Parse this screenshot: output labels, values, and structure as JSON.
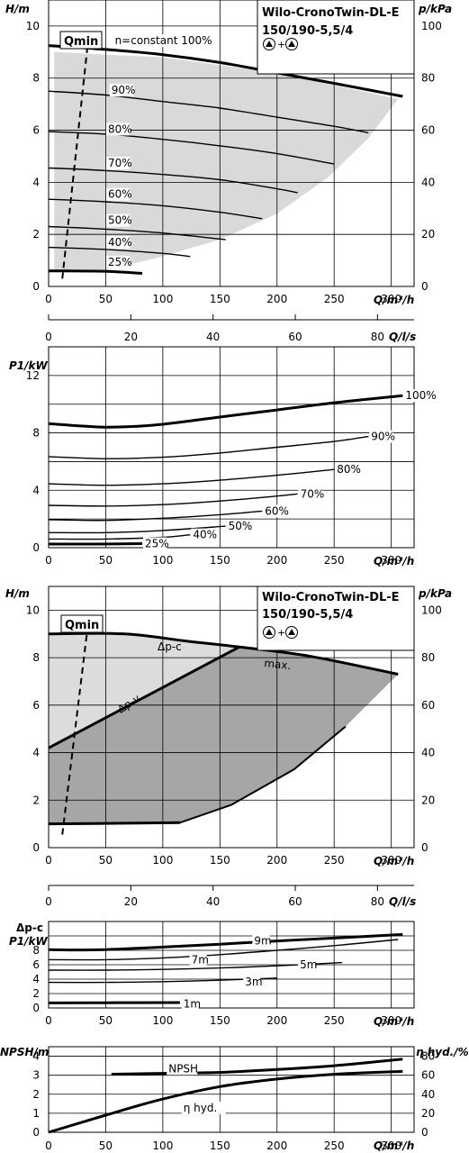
{
  "product": {
    "name": "Wilo-CronoTwin-DL-E",
    "model": "150/190-5,5/4",
    "operation_symbol": "▲ + ▲"
  },
  "chart_data": [
    {
      "id": "h_q_speed",
      "type": "line",
      "title": "Wilo-CronoTwin-DL-E 150/190-5,5/4",
      "xlabel": "Q/m³/h",
      "ylabel": "H/m",
      "y2label": "p/kPa",
      "xlim": [
        0,
        320
      ],
      "ylim": [
        0,
        11
      ],
      "y2lim": [
        0,
        110
      ],
      "x_ticks": [
        0,
        50,
        100,
        150,
        200,
        250,
        300
      ],
      "y_ticks": [
        0,
        2,
        4,
        6,
        8,
        10
      ],
      "y2_ticks": [
        0,
        20,
        40,
        60,
        80,
        100
      ],
      "grid": true,
      "qmin_label": "Qmin",
      "qmin_line": [
        [
          12,
          0.3
        ],
        [
          35,
          9.6
        ]
      ],
      "shaded_region": [
        [
          5,
          9.0
        ],
        [
          100,
          8.8
        ],
        [
          200,
          8.2
        ],
        [
          306,
          7.2
        ],
        [
          280,
          5.7
        ],
        [
          245,
          4.2
        ],
        [
          200,
          2.8
        ],
        [
          150,
          1.8
        ],
        [
          95,
          1.1
        ],
        [
          42,
          0.55
        ],
        [
          5,
          0.6
        ]
      ],
      "series": [
        {
          "name": "n=constant 100%",
          "label_x": 58,
          "label_y": 9.3,
          "bold": true,
          "x": [
            0,
            50,
            100,
            150,
            200,
            250,
            310
          ],
          "y": [
            9.25,
            9.1,
            8.9,
            8.6,
            8.2,
            7.8,
            7.3
          ]
        },
        {
          "name": "90%",
          "label_x": 55,
          "label_y": 7.4,
          "bold": false,
          "x": [
            0,
            50,
            100,
            150,
            200,
            250,
            280
          ],
          "y": [
            7.5,
            7.35,
            7.1,
            6.85,
            6.5,
            6.15,
            5.9
          ]
        },
        {
          "name": "80%",
          "label_x": 52,
          "label_y": 5.9,
          "bold": false,
          "x": [
            0,
            50,
            100,
            150,
            200,
            250
          ],
          "y": [
            5.95,
            5.85,
            5.65,
            5.4,
            5.1,
            4.7
          ]
        },
        {
          "name": "70%",
          "label_x": 52,
          "label_y": 4.6,
          "bold": false,
          "x": [
            0,
            50,
            100,
            150,
            200,
            218
          ],
          "y": [
            4.55,
            4.45,
            4.3,
            4.1,
            3.75,
            3.6
          ]
        },
        {
          "name": "60%",
          "label_x": 52,
          "label_y": 3.4,
          "bold": false,
          "x": [
            0,
            50,
            100,
            150,
            187
          ],
          "y": [
            3.35,
            3.25,
            3.1,
            2.85,
            2.6
          ]
        },
        {
          "name": "50%",
          "label_x": 52,
          "label_y": 2.4,
          "bold": false,
          "x": [
            0,
            50,
            100,
            155
          ],
          "y": [
            2.3,
            2.2,
            2.05,
            1.8
          ]
        },
        {
          "name": "40%",
          "label_x": 52,
          "label_y": 1.55,
          "bold": false,
          "x": [
            0,
            50,
            100,
            124
          ],
          "y": [
            1.5,
            1.42,
            1.27,
            1.15
          ]
        },
        {
          "name": "25%",
          "label_x": 52,
          "label_y": 0.8,
          "bold": true,
          "x": [
            0,
            50,
            82
          ],
          "y": [
            0.6,
            0.58,
            0.5
          ]
        }
      ]
    },
    {
      "id": "q_ls_axis",
      "type": "line",
      "xlabel": "Q/l/s",
      "xlim": [
        0,
        88.9
      ],
      "x_ticks": [
        0,
        20,
        40,
        60,
        80
      ]
    },
    {
      "id": "p1_q_speed",
      "type": "line",
      "xlabel": "Q/m³/h",
      "ylabel": "P1/kW",
      "xlim": [
        0,
        320
      ],
      "ylim": [
        0,
        14
      ],
      "x_ticks": [
        0,
        50,
        100,
        150,
        200,
        250,
        300
      ],
      "y_ticks": [
        0,
        4,
        8,
        12
      ],
      "grid": true,
      "series": [
        {
          "name": "100%",
          "bold": true,
          "x": [
            0,
            25,
            50,
            75,
            100,
            150,
            200,
            250,
            310
          ],
          "y": [
            8.65,
            8.5,
            8.4,
            8.45,
            8.6,
            9.1,
            9.6,
            10.1,
            10.6
          ]
        },
        {
          "name": "90%",
          "bold": false,
          "x": [
            0,
            50,
            100,
            150,
            200,
            250,
            280
          ],
          "y": [
            6.35,
            6.2,
            6.3,
            6.6,
            7.0,
            7.4,
            7.75
          ]
        },
        {
          "name": "80%",
          "bold": false,
          "x": [
            0,
            50,
            100,
            150,
            200,
            250
          ],
          "y": [
            4.45,
            4.35,
            4.45,
            4.7,
            5.05,
            5.45
          ]
        },
        {
          "name": "70%",
          "bold": false,
          "x": [
            0,
            50,
            100,
            150,
            200,
            218
          ],
          "y": [
            2.95,
            2.9,
            3.0,
            3.25,
            3.6,
            3.75
          ]
        },
        {
          "name": "60%",
          "bold": false,
          "x": [
            0,
            50,
            100,
            150,
            187
          ],
          "y": [
            1.95,
            1.9,
            2.05,
            2.3,
            2.55
          ]
        },
        {
          "name": "50%",
          "bold": false,
          "x": [
            0,
            50,
            100,
            155
          ],
          "y": [
            1.05,
            1.05,
            1.2,
            1.5
          ]
        },
        {
          "name": "40%",
          "bold": false,
          "x": [
            0,
            50,
            100,
            124
          ],
          "y": [
            0.6,
            0.6,
            0.72,
            0.9
          ]
        },
        {
          "name": "25%",
          "bold": true,
          "x": [
            0,
            40,
            82
          ],
          "y": [
            0.25,
            0.25,
            0.28
          ]
        }
      ]
    },
    {
      "id": "h_q_control",
      "type": "area",
      "title": "Wilo-CronoTwin-DL-E 150/190-5,5/4",
      "xlabel": "Q/m³/h",
      "ylabel": "H/m",
      "y2label": "p/kPa",
      "xlim": [
        0,
        320
      ],
      "ylim": [
        0,
        11
      ],
      "y2lim": [
        0,
        110
      ],
      "x_ticks": [
        0,
        50,
        100,
        150,
        200,
        250,
        300
      ],
      "y_ticks": [
        0,
        2,
        4,
        6,
        8,
        10
      ],
      "y2_ticks": [
        0,
        20,
        40,
        60,
        80,
        100
      ],
      "grid": true,
      "qmin_label": "Qmin",
      "qmin_line": [
        [
          12,
          0.55
        ],
        [
          35,
          9.6
        ]
      ],
      "dp_c_label": "Δp-c",
      "dp_v_label": "Δp-v",
      "max_label": "max.",
      "light_region": [
        [
          0,
          9.0
        ],
        [
          67,
          9.0
        ],
        [
          167,
          8.45
        ],
        [
          0,
          4.2
        ]
      ],
      "dark_region": [
        [
          0,
          4.2
        ],
        [
          167,
          8.45
        ],
        [
          230,
          8.1
        ],
        [
          306,
          7.3
        ],
        [
          260,
          5.1
        ],
        [
          215,
          3.3
        ],
        [
          160,
          1.8
        ],
        [
          115,
          1.05
        ],
        [
          0,
          1.0
        ]
      ],
      "max_curve": {
        "x": [
          0,
          67,
          120,
          167,
          230,
          306
        ],
        "y": [
          9.0,
          9.0,
          8.7,
          8.45,
          8.05,
          7.3
        ]
      },
      "dp_v_curve": {
        "x": [
          0,
          167
        ],
        "y": [
          4.2,
          8.45
        ]
      },
      "min_curve": {
        "x": [
          0,
          50,
          115
        ],
        "y": [
          1.0,
          1.02,
          1.05
        ]
      }
    },
    {
      "id": "q_ls_axis_2",
      "type": "line",
      "xlabel": "Q/l/s",
      "xlim": [
        0,
        88.9
      ],
      "x_ticks": [
        0,
        20,
        40,
        60,
        80
      ]
    },
    {
      "id": "p1_q_control",
      "type": "line",
      "xlabel": "Q/m³/h",
      "ylabel": "P1/kW",
      "ylabel_top": "Δp-c",
      "xlim": [
        0,
        320
      ],
      "ylim": [
        0,
        12
      ],
      "x_ticks": [
        0,
        50,
        100,
        150,
        200,
        250,
        300
      ],
      "y_ticks": [
        0,
        2,
        4,
        6,
        8
      ],
      "grid": true,
      "series": [
        {
          "name": "9m",
          "bold": true,
          "x": [
            0,
            25,
            50,
            100,
            150,
            200,
            250,
            310
          ],
          "y": [
            8.1,
            8.05,
            8.1,
            8.45,
            8.85,
            9.3,
            9.7,
            10.2
          ]
        },
        {
          "name": "7m",
          "bold": false,
          "x": [
            0,
            50,
            100,
            150,
            200,
            250,
            306
          ],
          "y": [
            6.7,
            6.7,
            6.95,
            7.4,
            8.0,
            8.65,
            9.5
          ]
        },
        {
          "name": "5m",
          "bold": false,
          "x": [
            0,
            50,
            100,
            150,
            200,
            257
          ],
          "y": [
            5.25,
            5.25,
            5.35,
            5.55,
            5.85,
            6.3
          ]
        },
        {
          "name": "3m",
          "bold": false,
          "x": [
            0,
            50,
            100,
            150,
            200
          ],
          "y": [
            3.55,
            3.55,
            3.65,
            3.85,
            4.15
          ]
        },
        {
          "name": "1m",
          "bold": true,
          "x": [
            0,
            50,
            115
          ],
          "y": [
            0.7,
            0.72,
            0.75
          ]
        }
      ]
    },
    {
      "id": "npsh_eta",
      "type": "line",
      "xlabel": "Q/m³/h",
      "ylabel": "NPSH/m",
      "y2label": "η hyd./%",
      "xlim": [
        0,
        320
      ],
      "ylim": [
        0,
        4.5
      ],
      "y2lim": [
        0,
        90
      ],
      "x_ticks": [
        0,
        50,
        100,
        150,
        200,
        250,
        300
      ],
      "y_ticks": [
        0,
        1,
        2,
        3,
        4
      ],
      "y2_ticks": [
        0,
        20,
        40,
        60,
        80
      ],
      "grid": true,
      "series": [
        {
          "name": "NPSH",
          "axis": "left",
          "bold": true,
          "x": [
            55,
            100,
            150,
            200,
            250,
            310
          ],
          "y": [
            3.05,
            3.1,
            3.15,
            3.3,
            3.5,
            3.85
          ]
        },
        {
          "name": "η hyd.",
          "axis": "right",
          "bold": true,
          "x": [
            0,
            50,
            100,
            150,
            200,
            250,
            310
          ],
          "y": [
            0,
            18,
            35,
            48,
            56,
            61,
            64
          ]
        }
      ]
    }
  ]
}
